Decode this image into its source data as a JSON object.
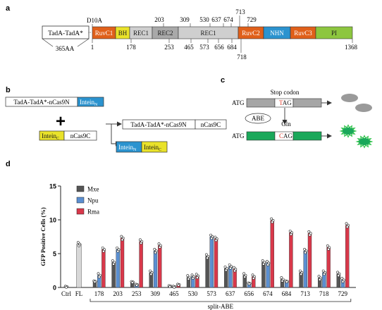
{
  "panels": {
    "a": {
      "label": "a",
      "tad_box": "TadA-TadA*",
      "tad_len": "365AA",
      "d10a": "D10A",
      "domains": [
        {
          "label": "RuvC1",
          "color": "#e0601a",
          "text_color": "#ffffff"
        },
        {
          "label": "BH",
          "color": "#e9e22a",
          "text_color": "#1a1a1a"
        },
        {
          "label": "REC1",
          "color": "#cfcfcf",
          "text_color": "#1a1a1a"
        },
        {
          "label": "REC2",
          "color": "#a9a9a9",
          "text_color": "#1a1a1a"
        },
        {
          "label": "REC1",
          "color": "#cfcfcf",
          "text_color": "#1a1a1a"
        },
        {
          "label": "RuvC2",
          "color": "#e0601a",
          "text_color": "#ffffff"
        },
        {
          "label": "NHN",
          "color": "#2b93cf",
          "text_color": "#ffffff"
        },
        {
          "label": "RuvC3",
          "color": "#e0601a",
          "text_color": "#ffffff"
        },
        {
          "label": "PI",
          "color": "#8dc63f",
          "text_color": "#1a1a1a"
        }
      ],
      "top_positions": [
        "203",
        "309",
        "530",
        "637",
        "674",
        "713",
        "729"
      ],
      "bottom_positions": [
        "1",
        "178",
        "253",
        "465",
        "573",
        "656",
        "684",
        "718",
        "1368"
      ]
    },
    "b": {
      "label": "b",
      "fragment_n": "TadA-TadA*-nCas9N",
      "intein_n": "Intein",
      "intein_n_sub": "N",
      "plus": "+",
      "intein_c": "Intein",
      "intein_c_sub": "C",
      "fragment_c": "nCas9C",
      "product_left": "TadA-TadA*-nCas9N",
      "product_right": "nCas9C",
      "excised_n": "Intein",
      "excised_n_sub": "N",
      "excised_c": "Intein",
      "excised_c_sub": "C"
    },
    "c": {
      "label": "c",
      "atg_top": "ATG",
      "stop_codon": "Stop codon",
      "codon_top_pre": "T",
      "codon_top_rest": "AG",
      "abe": "ABE",
      "gln": "Gln",
      "atg_bottom": "ATG",
      "codon_bottom_pre": "C",
      "codon_bottom_rest": "AG"
    },
    "d": {
      "label": "d"
    }
  },
  "colors": {
    "mxe": "#555555",
    "npu": "#5b8fd1",
    "rma": "#d8384a",
    "control": "#d8d8d8",
    "gray_box": "#a6a6a6",
    "green_box": "#1aa85a",
    "blue_box": "#2b93cf",
    "yellow_box": "#e9e22a",
    "stop_red": "#e03a2a",
    "gfp_green": "#2fc24a"
  },
  "chart_data": {
    "type": "bar",
    "ylabel": "GFP Positive Cells (%)",
    "xlabel": "split-ABE",
    "ylim": [
      0,
      15
    ],
    "yticks": [
      0,
      5,
      10,
      15
    ],
    "legend": "top-left",
    "controls": [
      {
        "label": "Ctrl",
        "value": 0.1
      },
      {
        "label": "FL",
        "value": 6.4
      }
    ],
    "categories": [
      "178",
      "203",
      "253",
      "309",
      "465",
      "530",
      "573",
      "637",
      "656",
      "674",
      "684",
      "713",
      "718",
      "729"
    ],
    "series": [
      {
        "name": "Mxe",
        "values": [
          0.9,
          3.7,
          0.8,
          2.2,
          0.2,
          1.5,
          4.6,
          2.8,
          1.8,
          3.7,
          1.2,
          2.2,
          1.4,
          2.0
        ]
      },
      {
        "name": "Npu",
        "values": [
          1.8,
          5.6,
          0.4,
          5.4,
          0.1,
          1.6,
          7.5,
          3.1,
          0.6,
          3.6,
          0.9,
          5.4,
          2.2,
          1.1
        ]
      },
      {
        "name": "Rma",
        "values": [
          5.6,
          7.3,
          6.8,
          6.2,
          0.4,
          1.7,
          7.2,
          2.7,
          1.6,
          9.9,
          8.1,
          8.0,
          5.9,
          9.2
        ]
      }
    ]
  }
}
